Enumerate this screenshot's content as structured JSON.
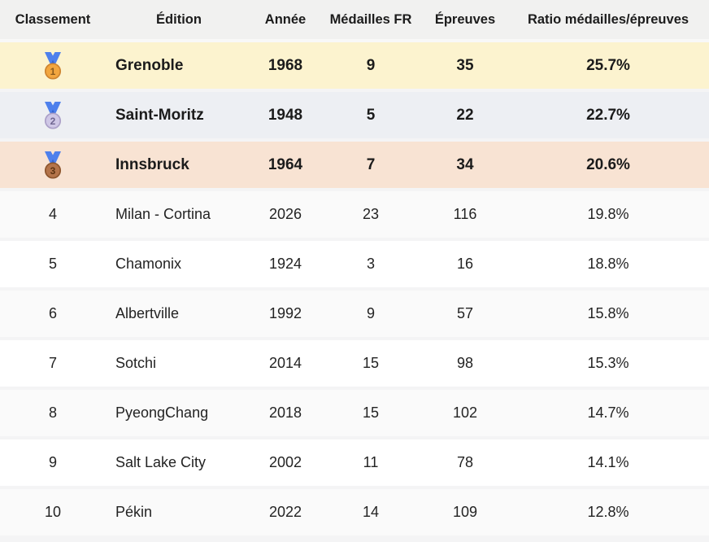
{
  "table": {
    "columns": [
      {
        "key": "rank",
        "label": "Classement"
      },
      {
        "key": "edition",
        "label": "Édition"
      },
      {
        "key": "year",
        "label": "Année"
      },
      {
        "key": "medals",
        "label": "Médailles FR"
      },
      {
        "key": "events",
        "label": "Épreuves"
      },
      {
        "key": "ratio",
        "label": "Ratio médailles/épreuves"
      }
    ],
    "rows": [
      {
        "rank": "1",
        "medal": "gold",
        "edition": "Grenoble",
        "year": "1968",
        "medals": "9",
        "events": "35",
        "ratio": "25.7%",
        "highlight": "gold"
      },
      {
        "rank": "2",
        "medal": "silver",
        "edition": "Saint-Moritz",
        "year": "1948",
        "medals": "5",
        "events": "22",
        "ratio": "22.7%",
        "highlight": "silver"
      },
      {
        "rank": "3",
        "medal": "bronze",
        "edition": "Innsbruck",
        "year": "1964",
        "medals": "7",
        "events": "34",
        "ratio": "20.6%",
        "highlight": "bronze"
      },
      {
        "rank": "4",
        "edition": "Milan - Cortina",
        "year": "2026",
        "medals": "23",
        "events": "116",
        "ratio": "19.8%"
      },
      {
        "rank": "5",
        "edition": "Chamonix",
        "year": "1924",
        "medals": "3",
        "events": "16",
        "ratio": "18.8%"
      },
      {
        "rank": "6",
        "edition": "Albertville",
        "year": "1992",
        "medals": "9",
        "events": "57",
        "ratio": "15.8%"
      },
      {
        "rank": "7",
        "edition": "Sotchi",
        "year": "2014",
        "medals": "15",
        "events": "98",
        "ratio": "15.3%"
      },
      {
        "rank": "8",
        "edition": "PyeongChang",
        "year": "2018",
        "medals": "15",
        "events": "102",
        "ratio": "14.7%"
      },
      {
        "rank": "9",
        "edition": "Salt Lake City",
        "year": "2002",
        "medals": "11",
        "events": "78",
        "ratio": "14.1%"
      },
      {
        "rank": "10",
        "edition": "Pékin",
        "year": "2022",
        "medals": "14",
        "events": "109",
        "ratio": "12.8%"
      }
    ],
    "colors": {
      "header_bg": "#f1f1f0",
      "gold_row_bg": "#fcf3cf",
      "silver_row_bg": "#edeff3",
      "bronze_row_bg": "#f8e3d3",
      "stripe_row_bg": "#fafafa",
      "white_row_bg": "#ffffff",
      "gap": "#f4f4f5",
      "text": "#1c1c1c"
    },
    "medal_icons": {
      "gold": {
        "icon": "gold-medal-icon",
        "number": "1",
        "ribbon": "#4e80ec",
        "ribbon_dark": "#3564d2",
        "fill": "#f2a63f",
        "ring": "#ce8430",
        "digit": "#8a5a1c"
      },
      "silver": {
        "icon": "silver-medal-icon",
        "number": "2",
        "ribbon": "#4e80ec",
        "ribbon_dark": "#3564d2",
        "fill": "#cfc7e6",
        "ring": "#aba0c8",
        "digit": "#6e6590"
      },
      "bronze": {
        "icon": "bronze-medal-icon",
        "number": "3",
        "ribbon": "#4e80ec",
        "ribbon_dark": "#3564d2",
        "fill": "#b4744a",
        "ring": "#8e562e",
        "digit": "#5c3312"
      }
    }
  }
}
